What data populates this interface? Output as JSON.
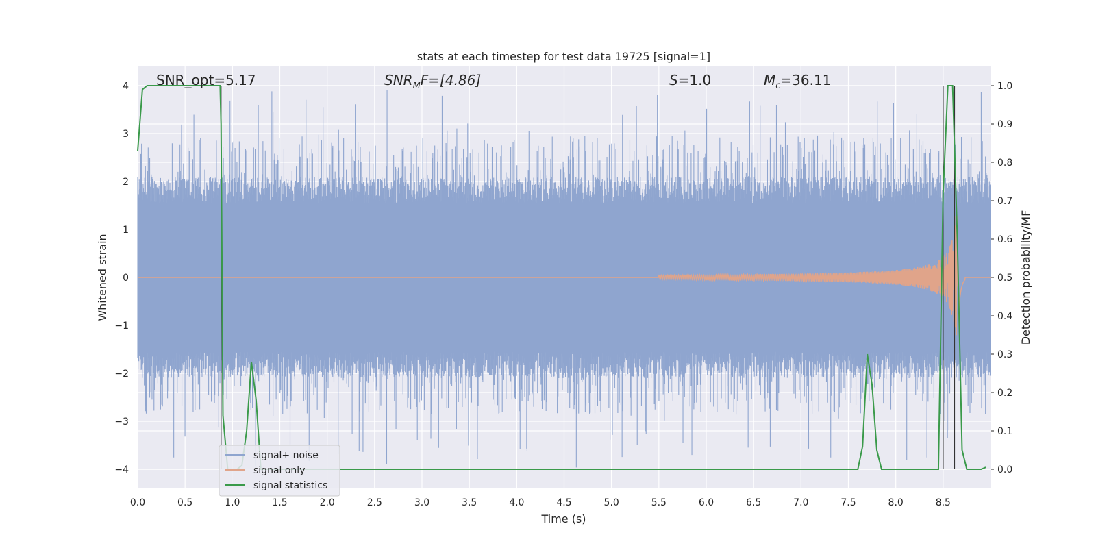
{
  "chart_data": {
    "type": "line",
    "title": "stats at each timestep for test data 19725 [signal=1]",
    "xlabel": "Time (s)",
    "ylabel_left": "Whitened strain",
    "ylabel_right": "Detection probability/MF",
    "xlim": [
      0.0,
      9.0
    ],
    "ylim_left": [
      -4.4,
      4.4
    ],
    "ylim_right": [
      -0.05,
      1.05
    ],
    "x_ticks": [
      "0.0",
      "0.5",
      "1.0",
      "1.5",
      "2.0",
      "2.5",
      "3.0",
      "3.5",
      "4.0",
      "4.5",
      "5.0",
      "5.5",
      "6.0",
      "6.5",
      "7.0",
      "7.5",
      "8.0",
      "8.5"
    ],
    "y_left_ticks": [
      "4",
      "3",
      "2",
      "1",
      "0",
      "−1",
      "−2",
      "−3",
      "−4"
    ],
    "y_right_ticks": [
      "1.0",
      "0.9",
      "0.8",
      "0.7",
      "0.6",
      "0.5",
      "0.4",
      "0.3",
      "0.2",
      "0.1",
      "0.0"
    ],
    "grid": true,
    "legend_placement": "lower-left",
    "annotations": {
      "snr_opt": "SNR_opt=5.17",
      "snr_mf_main": "SNR",
      "snr_mf_sub": "M",
      "snr_mf_tail": "F=[4.86]",
      "s_main": "S",
      "s_tail": "=1.0",
      "mc_main": "M",
      "mc_sub": "c",
      "mc_tail": "=36.11"
    },
    "vertical_markers_x": [
      0.88,
      8.5,
      8.62
    ],
    "series": [
      {
        "name": "signal+ noise",
        "color": "#8fa5cf",
        "axis": "left",
        "note_values": "noise envelope; core amplitude ~±1.6, peaks up to ~3.9 and down to ~-4.0"
      },
      {
        "name": "signal only",
        "color": "#e0a48a",
        "axis": "left",
        "chirp_start_x": 5.5,
        "chirp_peak_x": 8.65,
        "chirp_peak_amplitude": 1.3
      },
      {
        "name": "signal statistics",
        "color": "#3a9a4a",
        "axis": "right",
        "x": [
          0.0,
          0.05,
          0.1,
          0.2,
          0.87,
          0.88,
          0.9,
          0.95,
          1.0,
          1.05,
          1.1,
          1.15,
          1.2,
          1.25,
          1.3,
          1.35,
          1.4,
          7.55,
          7.6,
          7.65,
          7.7,
          7.75,
          7.8,
          7.85,
          7.9,
          7.95,
          8.0,
          8.45,
          8.5,
          8.55,
          8.6,
          8.65,
          8.7,
          8.75,
          8.8,
          8.9,
          8.95
        ],
        "values": [
          0.83,
          0.99,
          1.0,
          1.0,
          1.0,
          0.9,
          0.14,
          0.0,
          0.0,
          0.0,
          0.01,
          0.1,
          0.28,
          0.18,
          0.0,
          0.0,
          0.0,
          0.0,
          0.0,
          0.06,
          0.3,
          0.22,
          0.05,
          0.0,
          0.0,
          0.0,
          0.0,
          0.0,
          0.72,
          1.0,
          1.0,
          0.6,
          0.05,
          0.0,
          0.0,
          0.0,
          0.005
        ]
      }
    ]
  },
  "legend": {
    "items": [
      "signal+ noise",
      "signal only",
      "signal statistics"
    ]
  }
}
